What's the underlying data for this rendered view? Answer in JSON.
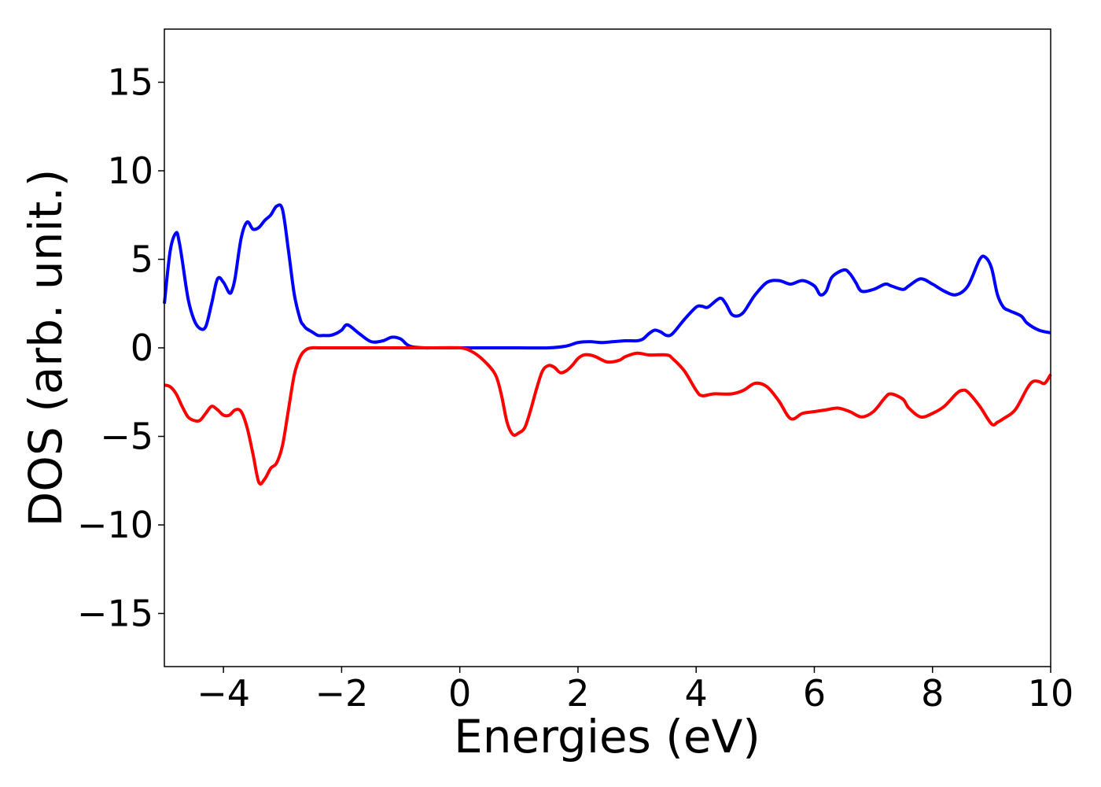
{
  "chart_data": {
    "type": "line",
    "title": "",
    "xlabel": "Energies (eV)",
    "ylabel": "DOS (arb. unit.)",
    "xlim": [
      -5,
      10
    ],
    "ylim": [
      -18,
      18
    ],
    "xticks": [
      -4,
      -2,
      0,
      2,
      4,
      6,
      8,
      10
    ],
    "xtick_labels": [
      "−4",
      "−2",
      "0",
      "2",
      "4",
      "6",
      "8",
      "10"
    ],
    "yticks": [
      -15,
      -10,
      -5,
      0,
      5,
      10,
      15
    ],
    "ytick_labels": [
      "−15",
      "−10",
      "−5",
      "0",
      "5",
      "10",
      "15"
    ],
    "grid": false,
    "legend": false,
    "series": [
      {
        "color": "#0000ff",
        "x": [
          -5.0,
          -4.9,
          -4.8,
          -4.75,
          -4.7,
          -4.6,
          -4.5,
          -4.4,
          -4.3,
          -4.2,
          -4.1,
          -4.0,
          -3.9,
          -3.85,
          -3.8,
          -3.7,
          -3.6,
          -3.5,
          -3.4,
          -3.3,
          -3.2,
          -3.1,
          -3.0,
          -2.9,
          -2.8,
          -2.7,
          -2.65,
          -2.6,
          -2.5,
          -2.4,
          -2.3,
          -2.2,
          -2.1,
          -2.0,
          -1.9,
          -1.7,
          -1.5,
          -1.3,
          -1.15,
          -1.0,
          -0.9,
          -0.8,
          -0.6,
          -0.45,
          -0.3,
          -0.15,
          0.0,
          0.5,
          1.0,
          1.5,
          1.8,
          2.0,
          2.2,
          2.4,
          2.6,
          2.8,
          3.0,
          3.1,
          3.2,
          3.3,
          3.4,
          3.5,
          3.6,
          3.8,
          4.0,
          4.1,
          4.2,
          4.4,
          4.5,
          4.6,
          4.7,
          4.8,
          4.9,
          5.0,
          5.2,
          5.4,
          5.6,
          5.8,
          6.0,
          6.1,
          6.2,
          6.3,
          6.5,
          6.6,
          6.7,
          6.8,
          7.0,
          7.2,
          7.3,
          7.5,
          7.6,
          7.8,
          8.0,
          8.2,
          8.4,
          8.6,
          8.8,
          8.9,
          9.0,
          9.1,
          9.2,
          9.3,
          9.5,
          9.6,
          9.8,
          10.0
        ],
        "y": [
          2.5,
          5.5,
          6.5,
          6.0,
          5.0,
          2.8,
          1.6,
          1.1,
          1.2,
          2.5,
          3.9,
          3.7,
          3.1,
          3.3,
          4.0,
          6.2,
          7.1,
          6.7,
          6.8,
          7.2,
          7.5,
          8.0,
          7.8,
          5.5,
          3.0,
          1.6,
          1.3,
          1.1,
          0.9,
          0.7,
          0.7,
          0.7,
          0.8,
          1.0,
          1.3,
          0.8,
          0.35,
          0.4,
          0.6,
          0.5,
          0.2,
          0.05,
          0.0,
          0.0,
          0.0,
          0.0,
          0.0,
          0.0,
          0.0,
          0.0,
          0.1,
          0.3,
          0.35,
          0.3,
          0.35,
          0.4,
          0.4,
          0.5,
          0.8,
          1.0,
          0.9,
          0.7,
          0.8,
          1.6,
          2.3,
          2.35,
          2.3,
          2.8,
          2.5,
          1.9,
          1.8,
          2.0,
          2.5,
          3.0,
          3.7,
          3.8,
          3.6,
          3.8,
          3.5,
          3.0,
          3.2,
          4.0,
          4.4,
          4.2,
          3.7,
          3.2,
          3.3,
          3.6,
          3.5,
          3.3,
          3.5,
          3.9,
          3.6,
          3.2,
          3.0,
          3.5,
          5.0,
          5.1,
          4.5,
          3.0,
          2.3,
          2.1,
          1.8,
          1.4,
          1.0,
          0.85
        ]
      },
      {
        "color": "#ff0000",
        "x": [
          -5.0,
          -4.9,
          -4.8,
          -4.7,
          -4.6,
          -4.5,
          -4.4,
          -4.3,
          -4.2,
          -4.1,
          -4.0,
          -3.9,
          -3.8,
          -3.7,
          -3.6,
          -3.5,
          -3.4,
          -3.3,
          -3.2,
          -3.1,
          -3.0,
          -2.9,
          -2.8,
          -2.7,
          -2.6,
          -2.5,
          -2.4,
          -2.3,
          -2.2,
          -2.0,
          -1.5,
          -1.0,
          -0.5,
          0.0,
          0.2,
          0.4,
          0.6,
          0.7,
          0.8,
          0.9,
          1.0,
          1.1,
          1.2,
          1.3,
          1.4,
          1.5,
          1.6,
          1.7,
          1.8,
          1.9,
          2.0,
          2.1,
          2.2,
          2.3,
          2.5,
          2.7,
          2.8,
          3.0,
          3.2,
          3.5,
          3.6,
          3.8,
          4.0,
          4.1,
          4.3,
          4.6,
          4.8,
          5.0,
          5.2,
          5.4,
          5.6,
          5.8,
          6.0,
          6.2,
          6.4,
          6.6,
          6.8,
          7.0,
          7.2,
          7.3,
          7.5,
          7.6,
          7.8,
          8.0,
          8.2,
          8.4,
          8.5,
          8.6,
          8.8,
          9.0,
          9.1,
          9.2,
          9.4,
          9.6,
          9.7,
          9.8,
          9.9,
          10.0
        ],
        "y": [
          -2.1,
          -2.2,
          -2.6,
          -3.3,
          -3.9,
          -4.1,
          -4.1,
          -3.7,
          -3.3,
          -3.5,
          -3.8,
          -3.8,
          -3.5,
          -3.6,
          -4.5,
          -6.0,
          -7.6,
          -7.4,
          -6.8,
          -6.5,
          -5.5,
          -3.5,
          -1.5,
          -0.5,
          -0.1,
          0.0,
          0.0,
          0.0,
          0.0,
          0.0,
          0.0,
          0.0,
          0.0,
          0.0,
          -0.2,
          -0.7,
          -1.5,
          -2.6,
          -4.2,
          -4.9,
          -4.8,
          -4.5,
          -3.5,
          -2.3,
          -1.3,
          -1.0,
          -1.1,
          -1.4,
          -1.3,
          -1.0,
          -0.6,
          -0.4,
          -0.4,
          -0.5,
          -0.8,
          -0.7,
          -0.5,
          -0.3,
          -0.4,
          -0.4,
          -0.6,
          -1.3,
          -2.4,
          -2.7,
          -2.6,
          -2.6,
          -2.4,
          -2.0,
          -2.2,
          -3.0,
          -4.0,
          -3.7,
          -3.6,
          -3.5,
          -3.4,
          -3.6,
          -3.9,
          -3.6,
          -2.8,
          -2.6,
          -2.9,
          -3.4,
          -3.9,
          -3.7,
          -3.3,
          -2.6,
          -2.4,
          -2.5,
          -3.3,
          -4.3,
          -4.2,
          -4.0,
          -3.5,
          -2.3,
          -1.9,
          -1.9,
          -2.0,
          -1.5
        ]
      }
    ]
  }
}
